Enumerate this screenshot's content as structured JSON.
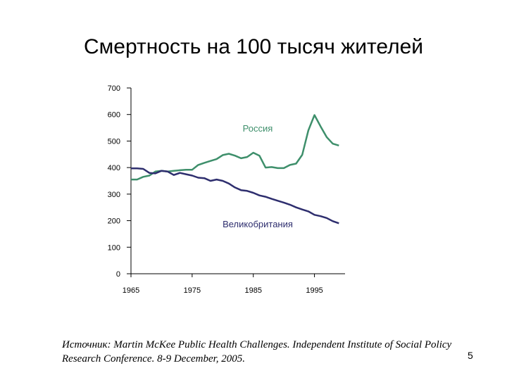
{
  "slide": {
    "title": "Смертность на 100 тысяч жителей",
    "source": "Источник: Martin McKee Public Health Challenges. Independent Institute of Social Policy Research Conference. 8-9 December, 2005.",
    "page_number": "5"
  },
  "chart_data": {
    "type": "line",
    "title": "Смертность на 100 тысяч жителей",
    "xlabel": "",
    "ylabel": "",
    "xlim": [
      1965,
      2000
    ],
    "ylim": [
      0,
      700
    ],
    "y_ticks": [
      0,
      100,
      200,
      300,
      400,
      500,
      600,
      700
    ],
    "x_ticks": [
      1965,
      1975,
      1985,
      1995
    ],
    "x_tick_labels": [
      "1965",
      "1975",
      "1985",
      "1995"
    ],
    "grid": false,
    "series": [
      {
        "name": "Россия",
        "color": "#3e8f6b",
        "x": [
          1965,
          1966,
          1967,
          1968,
          1969,
          1970,
          1971,
          1972,
          1973,
          1974,
          1975,
          1976,
          1977,
          1978,
          1979,
          1980,
          1981,
          1982,
          1983,
          1984,
          1985,
          1986,
          1987,
          1988,
          1989,
          1990,
          1991,
          1992,
          1993,
          1994,
          1995,
          1996,
          1997,
          1998,
          1999
        ],
        "values": [
          355,
          355,
          365,
          370,
          385,
          388,
          385,
          388,
          390,
          392,
          392,
          410,
          418,
          425,
          432,
          447,
          452,
          445,
          435,
          440,
          456,
          445,
          400,
          402,
          398,
          398,
          410,
          415,
          448,
          540,
          598,
          555,
          515,
          490,
          483
        ]
      },
      {
        "name": "Великобритания",
        "color": "#2e2e6e",
        "x": [
          1965,
          1966,
          1967,
          1968,
          1969,
          1970,
          1971,
          1972,
          1973,
          1974,
          1975,
          1976,
          1977,
          1978,
          1979,
          1980,
          1981,
          1982,
          1983,
          1984,
          1985,
          1986,
          1987,
          1988,
          1989,
          1990,
          1991,
          1992,
          1993,
          1994,
          1995,
          1996,
          1997,
          1998,
          1999
        ],
        "values": [
          397,
          397,
          395,
          380,
          378,
          388,
          385,
          372,
          380,
          375,
          370,
          362,
          360,
          350,
          355,
          350,
          340,
          325,
          315,
          312,
          305,
          295,
          290,
          282,
          275,
          268,
          260,
          250,
          242,
          235,
          222,
          217,
          210,
          198,
          190
        ]
      }
    ]
  }
}
